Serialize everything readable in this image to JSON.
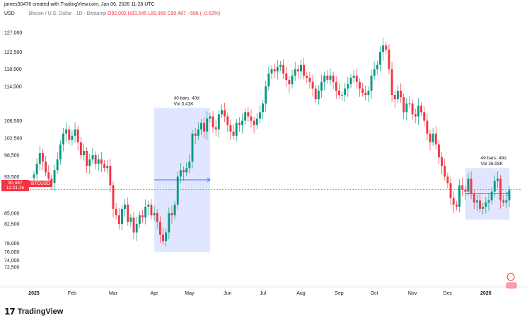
{
  "caption": "james30478 created with TradingView.com, Jan 06, 2026 11:28 UTC",
  "symbol_bar": {
    "currency": "USD",
    "name": "Bitcoin / U.S. Dollar · 1D · Bitstamp",
    "ohlc": "O92,002 H93,545 L89,956 C90,487 −588 (−0.63%)"
  },
  "price_badge": {
    "price": "90,487",
    "sub": "12:31:26"
  },
  "symbol_badge": "BTCUSD",
  "brand": {
    "mark": "17",
    "word": "TradingView"
  },
  "colors": {
    "up": "#089981",
    "down": "#f23645",
    "range_fill": "#c7d2fe",
    "range_line": "#2962ff",
    "price_line": "#f23645"
  },
  "chart_data": {
    "type": "candlestick",
    "ylim": [
      70000,
      128000
    ],
    "y_ticks": [
      {
        "value": 127000,
        "label": "127,000"
      },
      {
        "value": 122500,
        "label": "122,500"
      },
      {
        "value": 118500,
        "label": "118,500"
      },
      {
        "value": 114500,
        "label": "114,500"
      },
      {
        "value": 106500,
        "label": "106,500"
      },
      {
        "value": 102500,
        "label": "102,500"
      },
      {
        "value": 98500,
        "label": "98,500"
      },
      {
        "value": 93500,
        "label": "93,500"
      },
      {
        "value": 85000,
        "label": "85,000"
      },
      {
        "value": 82500,
        "label": "82,500"
      },
      {
        "value": 78000,
        "label": "78,000"
      },
      {
        "value": 76000,
        "label": "76,000"
      },
      {
        "value": 74000,
        "label": "74,000"
      },
      {
        "value": 72500,
        "label": "72,500"
      }
    ],
    "x_months": [
      {
        "label": "2025",
        "bold": true
      },
      {
        "label": "Feb",
        "bold": false
      },
      {
        "label": "Mar",
        "bold": false
      },
      {
        "label": "Apr",
        "bold": false
      },
      {
        "label": "May",
        "bold": false
      },
      {
        "label": "Jun",
        "bold": false
      },
      {
        "label": "Jul",
        "bold": false
      },
      {
        "label": "Aug",
        "bold": false
      },
      {
        "label": "Sep",
        "bold": false
      },
      {
        "label": "Oct",
        "bold": false
      },
      {
        "label": "Nov",
        "bold": false
      },
      {
        "label": "Dec",
        "bold": false
      },
      {
        "label": "2026",
        "bold": true
      }
    ],
    "last_price": 90487,
    "closes": [
      94000,
      96500,
      99000,
      97000,
      94500,
      93000,
      92000,
      95000,
      97500,
      101000,
      103500,
      104500,
      102000,
      103000,
      104500,
      101500,
      98500,
      99500,
      96000,
      97500,
      98500,
      96500,
      97500,
      96500,
      95500,
      96000,
      91500,
      86000,
      84500,
      82500,
      86000,
      87000,
      83000,
      84000,
      80500,
      82500,
      84500,
      84000,
      86500,
      87000,
      84500,
      85000,
      83000,
      80000,
      78500,
      80500,
      85000,
      84500,
      87000,
      93500,
      95000,
      94500,
      95500,
      97000,
      103500,
      103000,
      104500,
      106000,
      104000,
      107000,
      107500,
      105000,
      104500,
      108000,
      109000,
      107500,
      105500,
      104000,
      103000,
      106000,
      105500,
      106500,
      108500,
      107500,
      106500,
      105500,
      107000,
      108500,
      110500,
      114500,
      117500,
      118500,
      118000,
      119000,
      119500,
      117500,
      116000,
      115000,
      117000,
      118500,
      118000,
      119500,
      117000,
      116500,
      115500,
      114000,
      111500,
      113500,
      115500,
      117000,
      116000,
      117000,
      115500,
      113500,
      112500,
      112500,
      114000,
      115000,
      116500,
      117000,
      115500,
      114000,
      113000,
      112500,
      113500,
      117000,
      118500,
      119500,
      122500,
      124000,
      123000,
      118500,
      112500,
      111500,
      113500,
      112000,
      108500,
      110500,
      110500,
      108000,
      107500,
      110000,
      108500,
      106500,
      103500,
      101500,
      103500,
      101000,
      98000,
      96000,
      93500,
      92000,
      88500,
      87000,
      86500,
      91500,
      90500,
      90000,
      93000,
      89500,
      87500,
      88000,
      86000,
      86500,
      87500,
      88000,
      90000,
      92500,
      93000,
      88000,
      87500,
      88000,
      90487
    ],
    "annotations": [
      {
        "label_lines": [
          "40 bars, 40d",
          "Vol 3.41K"
        ]
      },
      {
        "label_lines": [
          "49 bars, 49d",
          "Vol 26.08K"
        ]
      }
    ]
  }
}
